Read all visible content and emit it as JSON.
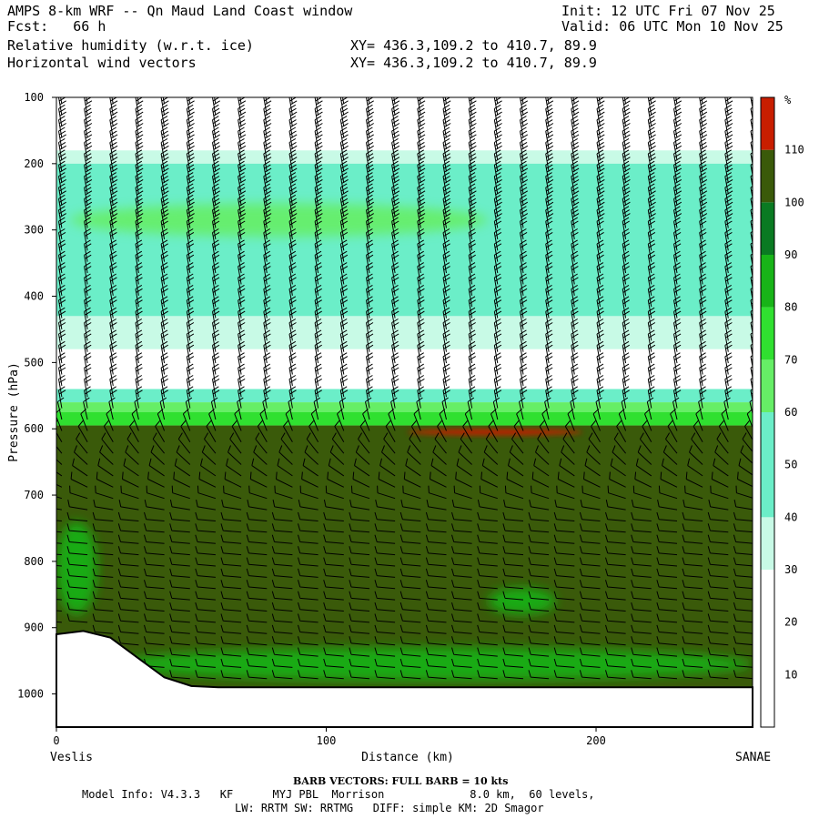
{
  "header": {
    "title": "AMPS 8-km WRF -- Qn Maud Land Coast window",
    "fcst": "Fcst:   66 h",
    "init": "Init: 12 UTC Fri 07 Nov 25",
    "valid": "Valid: 06 UTC Mon 10 Nov 25",
    "field1": "Relative humidity (w.r.t. ice)",
    "field2": "Horizontal wind vectors",
    "xy1": "XY= 436.3,109.2 to 410.7, 89.9",
    "xy2": "XY= 436.3,109.2 to 410.7, 89.9"
  },
  "footer": {
    "barb_title": "BARB VECTORS:  FULL BARB = 10 kts",
    "model_line1": "Model Info: V4.3.3   KF      MYJ PBL  Morrison             8.0 km,  60 levels,",
    "model_line2": "LW: RRTM SW: RRTMG   DIFF: simple KM: 2D Smagor"
  },
  "chart_data": {
    "type": "heatmap",
    "ylabel": "Pressure (hPa)",
    "xlabel": "Distance (km)",
    "x_left_label": "Veslis",
    "x_right_label": "SANAE",
    "x_range": [
      0,
      258
    ],
    "y_range_hpa": [
      100,
      1050
    ],
    "x_ticks": [
      0,
      100,
      200
    ],
    "y_ticks": [
      100,
      200,
      300,
      400,
      500,
      600,
      700,
      800,
      900,
      1000
    ],
    "colorbar": {
      "unit": "%",
      "ticks": [
        10,
        20,
        30,
        40,
        50,
        60,
        70,
        80,
        90,
        100,
        110
      ],
      "levels": [
        0,
        30,
        40,
        60,
        70,
        80,
        90,
        100,
        110,
        120
      ],
      "colors": [
        "#ffffff",
        "#c8fae6",
        "#6beec8",
        "#66ee66",
        "#30e030",
        "#18b418",
        "#0a7a22",
        "#3a5a0a",
        "#c81e00"
      ]
    },
    "rh_layers": [
      {
        "from_hpa": 100,
        "to_hpa": 180,
        "rh": 20
      },
      {
        "from_hpa": 180,
        "to_hpa": 200,
        "rh": 35
      },
      {
        "from_hpa": 200,
        "to_hpa": 430,
        "rh": 45
      },
      {
        "from_hpa": 430,
        "to_hpa": 480,
        "rh": 35
      },
      {
        "from_hpa": 480,
        "to_hpa": 540,
        "rh": 25
      },
      {
        "from_hpa": 540,
        "to_hpa": 560,
        "rh": 45
      },
      {
        "from_hpa": 560,
        "to_hpa": 575,
        "rh": 65
      },
      {
        "from_hpa": 575,
        "to_hpa": 595,
        "rh": 75
      },
      {
        "from_hpa": 595,
        "to_hpa": 990,
        "rh": 105
      }
    ],
    "rh_features": [
      {
        "desc": "upper moist band",
        "x_km": [
          5,
          160
        ],
        "p_hpa": [
          260,
          310
        ],
        "rh": 65
      },
      {
        "desc": "supersaturated streak",
        "x_km": [
          130,
          195
        ],
        "p_hpa": [
          600,
          610
        ],
        "rh": 115
      },
      {
        "desc": "low-level moist blob",
        "x_km": [
          0,
          15
        ],
        "p_hpa": [
          740,
          880
        ],
        "rh": 80
      },
      {
        "desc": "low-level blob",
        "x_km": [
          160,
          185
        ],
        "p_hpa": [
          840,
          880
        ],
        "rh": 85
      },
      {
        "desc": "boundary layer band",
        "x_km": [
          20,
          258
        ],
        "p_hpa": [
          930,
          980
        ],
        "rh": 80
      }
    ],
    "terrain_surface_hpa": [
      {
        "x": 0,
        "p": 910
      },
      {
        "x": 10,
        "p": 905
      },
      {
        "x": 20,
        "p": 915
      },
      {
        "x": 30,
        "p": 945
      },
      {
        "x": 40,
        "p": 975
      },
      {
        "x": 50,
        "p": 988
      },
      {
        "x": 60,
        "p": 990
      },
      {
        "x": 258,
        "p": 990
      }
    ],
    "wind_barbs": "barb columns every ~9.5 km; upper levels westerly ~30 kt, lower levels north-easterly"
  }
}
